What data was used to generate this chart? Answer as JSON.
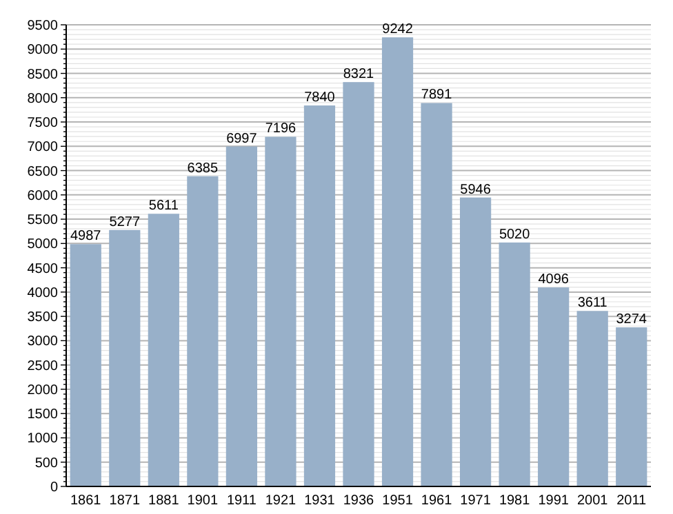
{
  "chart_data": {
    "type": "bar",
    "categories": [
      "1861",
      "1871",
      "1881",
      "1901",
      "1911",
      "1921",
      "1931",
      "1936",
      "1951",
      "1961",
      "1971",
      "1981",
      "1991",
      "2001",
      "2011"
    ],
    "values": [
      4987,
      5277,
      5611,
      6385,
      6997,
      7196,
      7840,
      8321,
      9242,
      7891,
      5946,
      5020,
      4096,
      3611,
      3274
    ],
    "color": "#98b0c9",
    "data_labels": true,
    "grid": "y",
    "ylim": [
      0,
      9500
    ],
    "yticks": [
      0,
      {
        "value": 100,
        "label": null
      },
      {
        "value": 200,
        "label": null
      },
      {
        "value": 300,
        "label": null
      },
      {
        "value": 400,
        "label": null
      },
      500,
      {
        "value": 600,
        "label": null
      },
      {
        "value": 700,
        "label": null
      },
      {
        "value": 800,
        "label": null
      },
      {
        "value": 900,
        "label": null
      },
      1000,
      {
        "value": 1100,
        "label": null
      },
      {
        "value": 1200,
        "label": null
      },
      {
        "value": 1300,
        "label": null
      },
      {
        "value": 1400,
        "label": null
      },
      1500,
      {
        "value": 1600,
        "label": null
      },
      {
        "value": 1700,
        "label": null
      },
      {
        "value": 1800,
        "label": null
      },
      {
        "value": 1900,
        "label": null
      },
      2000,
      {
        "value": 2100,
        "label": null
      },
      {
        "value": 2200,
        "label": null
      },
      {
        "value": 2300,
        "label": null
      },
      {
        "value": 2400,
        "label": null
      },
      2500,
      {
        "value": 2600,
        "label": null
      },
      {
        "value": 2700,
        "label": null
      },
      {
        "value": 2800,
        "label": null
      },
      {
        "value": 2900,
        "label": null
      },
      3000,
      {
        "value": 3100,
        "label": null
      },
      {
        "value": 3200,
        "label": null
      },
      {
        "value": 3300,
        "label": null
      },
      {
        "value": 3400,
        "label": null
      },
      3500,
      {
        "value": 3600,
        "label": null
      },
      {
        "value": 3700,
        "label": null
      },
      {
        "value": 3800,
        "label": null
      },
      {
        "value": 3900,
        "label": null
      },
      4000,
      {
        "value": 4100,
        "label": null
      },
      {
        "value": 4200,
        "label": null
      },
      {
        "value": 4300,
        "label": null
      },
      {
        "value": 4400,
        "label": null
      },
      4500,
      {
        "value": 4600,
        "label": null
      },
      {
        "value": 4700,
        "label": null
      },
      {
        "value": 4800,
        "label": null
      },
      {
        "value": 4900,
        "label": null
      },
      5000,
      {
        "value": 5100,
        "label": null
      },
      {
        "value": 5200,
        "label": null
      },
      {
        "value": 5300,
        "label": null
      },
      {
        "value": 5400,
        "label": null
      },
      5500,
      {
        "value": 5600,
        "label": null
      },
      {
        "value": 5700,
        "label": null
      },
      {
        "value": 5800,
        "label": null
      },
      {
        "value": 5900,
        "label": null
      },
      6000,
      {
        "value": 6100,
        "label": null
      },
      {
        "value": 6200,
        "label": null
      },
      {
        "value": 6300,
        "label": null
      },
      {
        "value": 6400,
        "label": null
      },
      6500,
      {
        "value": 6600,
        "label": null
      },
      {
        "value": 6700,
        "label": null
      },
      {
        "value": 6800,
        "label": null
      },
      {
        "value": 6900,
        "label": null
      },
      7000,
      {
        "value": 7100,
        "label": null
      },
      {
        "value": 7200,
        "label": null
      },
      {
        "value": 7300,
        "label": null
      },
      {
        "value": 7400,
        "label": null
      },
      7500,
      {
        "value": 7600,
        "label": null
      },
      {
        "value": 7700,
        "label": null
      },
      {
        "value": 7800,
        "label": null
      },
      {
        "value": 7900,
        "label": null
      },
      8000,
      {
        "value": 8100,
        "label": null
      },
      {
        "value": 8200,
        "label": null
      },
      {
        "value": 8300,
        "label": null
      },
      {
        "value": 8400,
        "label": null
      },
      8500,
      {
        "value": 8600,
        "label": null
      },
      {
        "value": 8700,
        "label": null
      },
      {
        "value": 8800,
        "label": null
      },
      {
        "value": 8900,
        "label": null
      },
      9000,
      {
        "value": 9100,
        "label": null
      },
      {
        "value": 9200,
        "label": null
      },
      {
        "value": 9300,
        "label": null
      },
      {
        "value": 9400,
        "label": null
      },
      9500
    ]
  }
}
